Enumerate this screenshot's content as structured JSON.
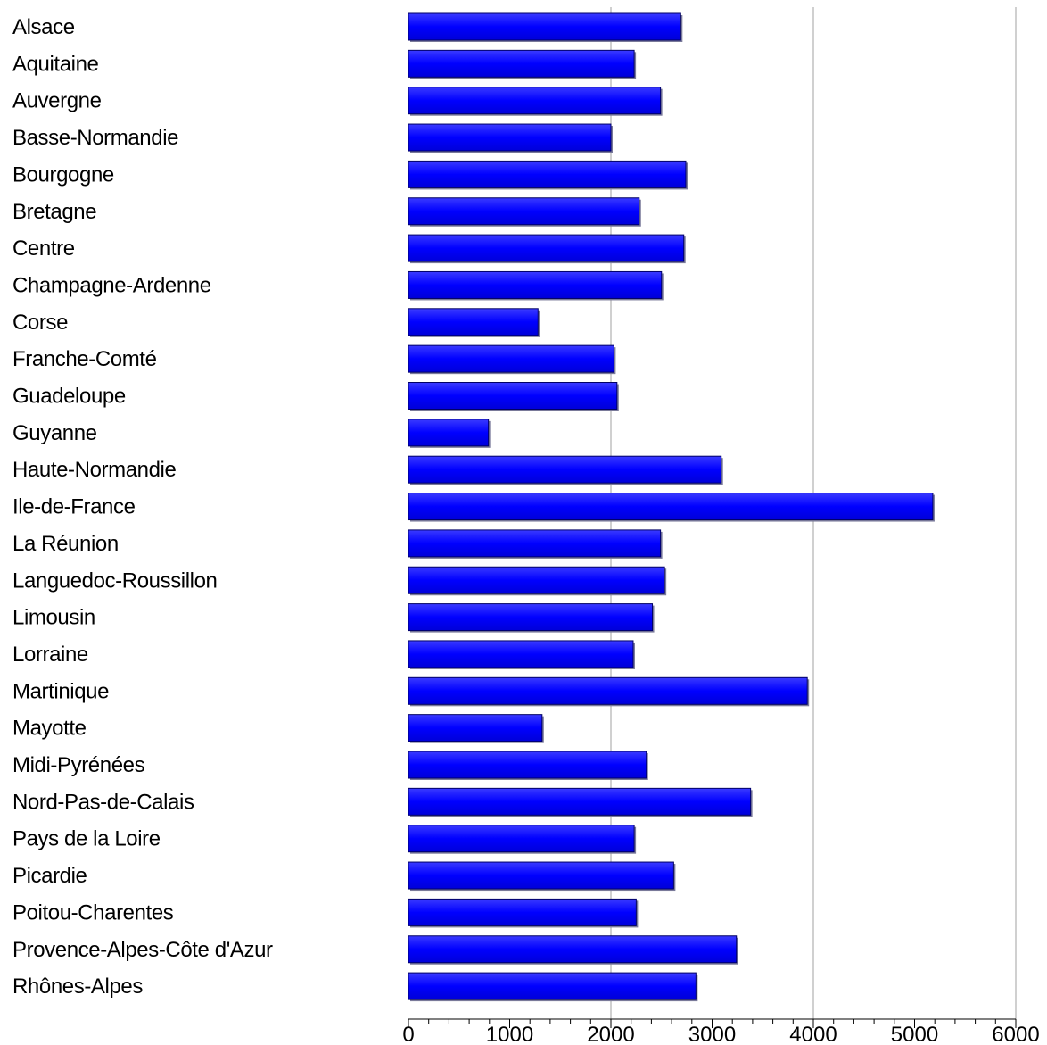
{
  "chart_data": {
    "type": "bar",
    "orientation": "horizontal",
    "categories": [
      "Alsace",
      "Aquitaine",
      "Auvergne",
      "Basse-Normandie",
      "Bourgogne",
      "Bretagne",
      "Centre",
      "Champagne-Ardenne",
      "Corse",
      "Franche-Comté",
      "Guadeloupe",
      "Guyanne",
      "Haute-Normandie",
      "Ile-de-France",
      "La Réunion",
      "Languedoc-Roussillon",
      "Limousin",
      "Lorraine",
      "Martinique",
      "Mayotte",
      "Midi-Pyrénées",
      "Nord-Pas-de-Calais",
      "Pays de la Loire",
      "Picardie",
      "Poitou-Charentes",
      "Provence-Alpes-Côte d'Azur",
      "Rhônes-Alpes"
    ],
    "values": [
      2690,
      2230,
      2490,
      2000,
      2740,
      2280,
      2720,
      2500,
      1280,
      2030,
      2060,
      790,
      3090,
      5180,
      2490,
      2530,
      2410,
      2220,
      3940,
      1320,
      2350,
      3380,
      2230,
      2620,
      2250,
      3240,
      2840
    ],
    "xlim": [
      0,
      6000
    ],
    "xticks": [
      "0",
      "1000",
      "2000",
      "3000",
      "4000",
      "5000",
      "6000"
    ],
    "gridlines": [
      2000,
      4000,
      6000
    ],
    "bar_color": "#0000ff",
    "title": "",
    "xlabel": "",
    "ylabel": ""
  }
}
